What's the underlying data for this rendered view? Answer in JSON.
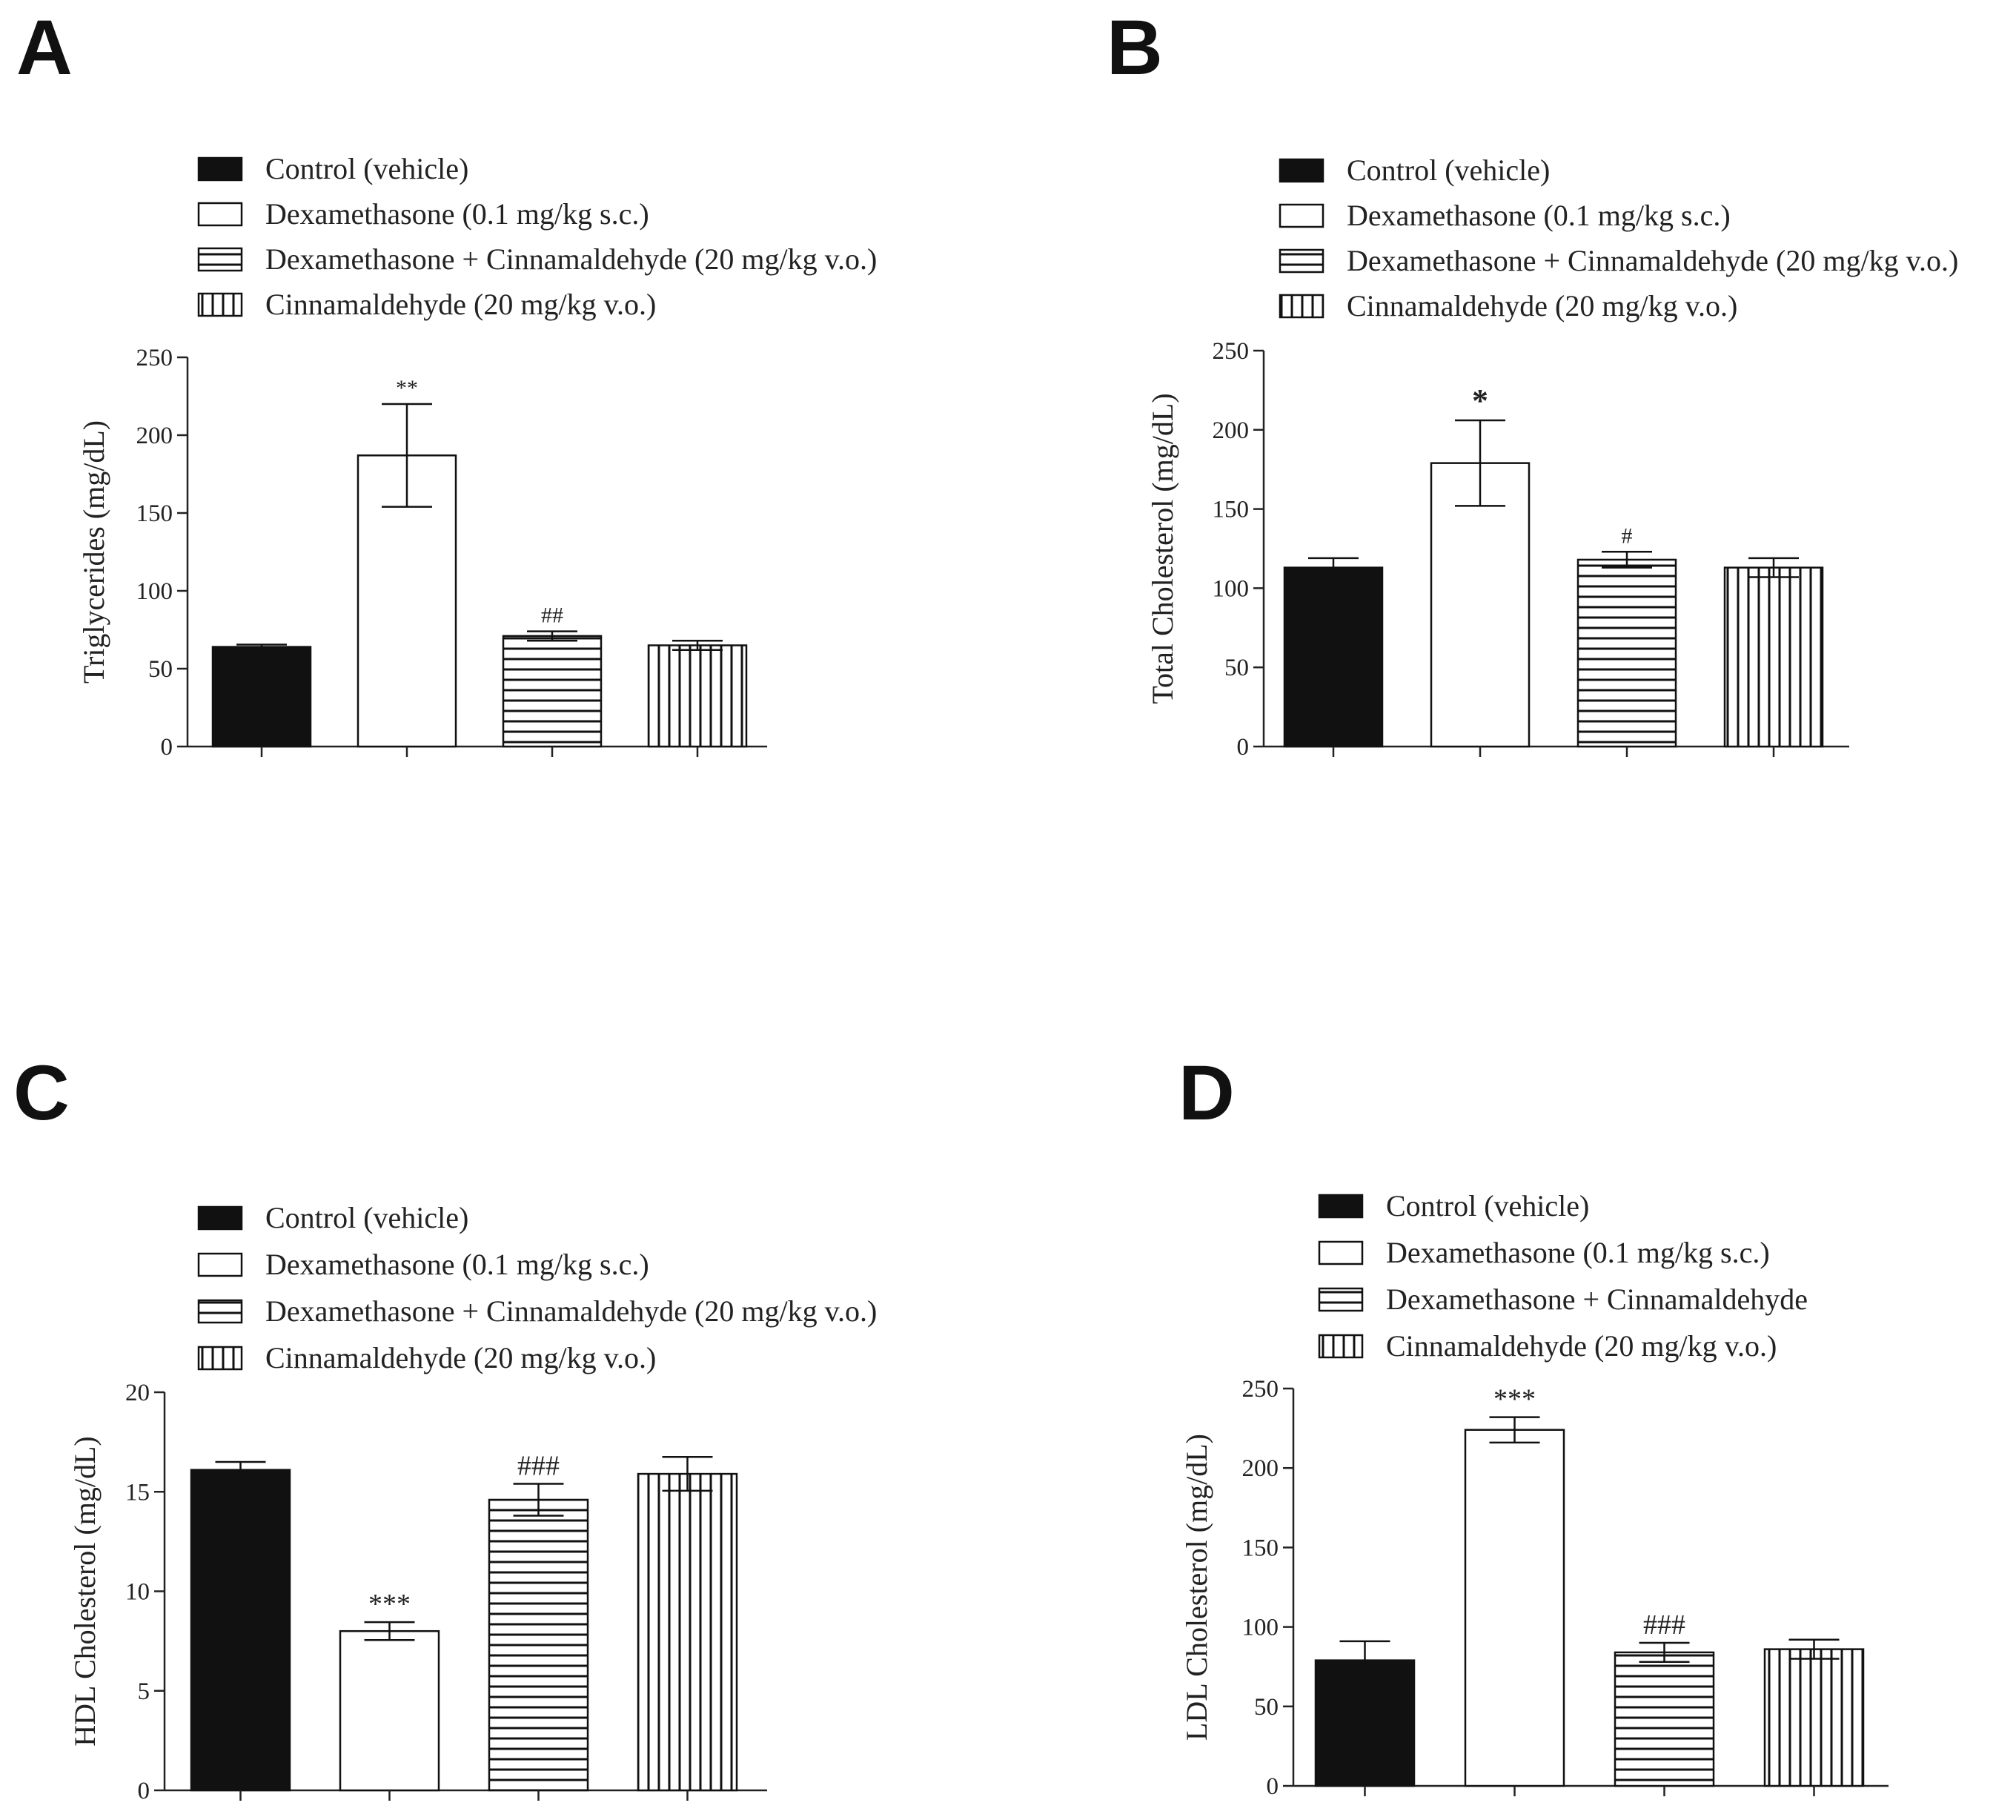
{
  "chart_data": [
    {
      "panel": "A",
      "type": "bar",
      "legend": [
        "Control (vehicle)",
        "Dexamethasone (0.1 mg/kg s.c.)",
        "Dexamethasone + Cinnamaldehyde (20 mg/kg v.o.)",
        "Cinnamaldehyde (20 mg/kg v.o.)"
      ],
      "ylabel": "Triglycerides (mg/dL)",
      "ylim": [
        0,
        250
      ],
      "yticks": [
        0,
        50,
        100,
        150,
        200,
        250
      ],
      "values": [
        64,
        187,
        71,
        65
      ],
      "errors": [
        1.5,
        33,
        3,
        3
      ],
      "annotations": [
        "",
        "**",
        "##",
        ""
      ]
    },
    {
      "panel": "B",
      "type": "bar",
      "legend": [
        "Control (vehicle)",
        "Dexamethasone (0.1 mg/kg s.c.)",
        "Dexamethasone + Cinnamaldehyde (20 mg/kg v.o.)",
        "Cinnamaldehyde (20 mg/kg v.o.)"
      ],
      "ylabel": "Total Cholesterol (mg/dL)",
      "ylim": [
        0,
        250
      ],
      "yticks": [
        0,
        50,
        100,
        150,
        200,
        250
      ],
      "values": [
        113,
        179,
        118,
        113
      ],
      "errors": [
        6,
        27,
        5,
        6
      ],
      "annotations": [
        "",
        "*",
        "#",
        ""
      ]
    },
    {
      "panel": "C",
      "type": "bar",
      "legend": [
        "Control (vehicle)",
        "Dexamethasone (0.1 mg/kg s.c.)",
        "Dexamethasone + Cinnamaldehyde (20 mg/kg v.o.)",
        "Cinnamaldehyde (20 mg/kg v.o.)"
      ],
      "ylabel": "HDL Cholesterol (mg/dL)",
      "ylim": [
        0,
        20
      ],
      "yticks": [
        0,
        5,
        10,
        15,
        20
      ],
      "values": [
        16.1,
        8.0,
        14.6,
        15.9
      ],
      "errors": [
        0.4,
        0.45,
        0.8,
        0.85
      ],
      "annotations": [
        "",
        "***",
        "###",
        ""
      ]
    },
    {
      "panel": "D",
      "type": "bar",
      "legend": [
        "Control (vehicle)",
        "Dexamethasone (0.1 mg/kg s.c.)",
        "Dexamethasone + Cinnamaldehyde",
        "Cinnamaldehyde (20 mg/kg v.o.)"
      ],
      "ylabel": "LDL Cholesterol (mg/dL)",
      "ylim": [
        0,
        250
      ],
      "yticks": [
        0,
        50,
        100,
        150,
        200,
        250
      ],
      "values": [
        79,
        224,
        84,
        86
      ],
      "errors": [
        12,
        8,
        6,
        6
      ],
      "annotations": [
        "",
        "***",
        "###",
        ""
      ]
    }
  ]
}
